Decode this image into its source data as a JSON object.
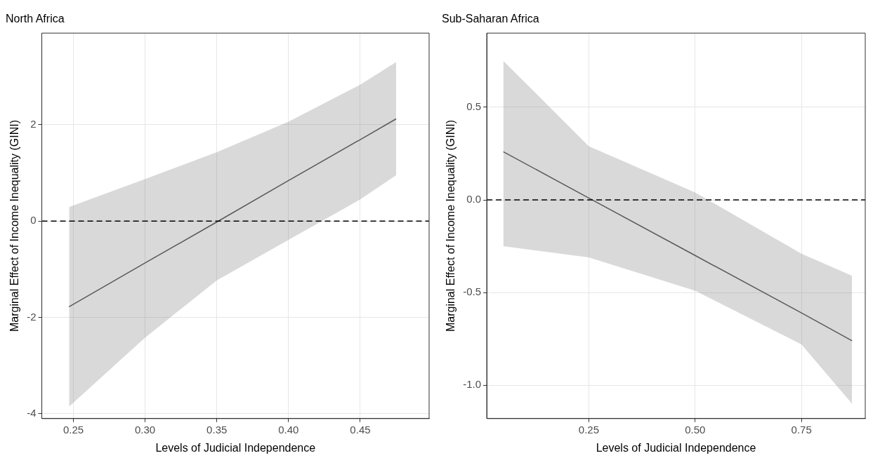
{
  "chart_data": [
    {
      "type": "line",
      "title": "North Africa",
      "xlabel": "Levels of Judicial Independence",
      "ylabel": "Marginal Effect of Income Inequality (GINI)",
      "x": [
        0.247,
        0.3,
        0.35,
        0.4,
        0.45,
        0.475
      ],
      "series": [
        {
          "color": "#595959",
          "values": [
            -1.78,
            -0.87,
            -0.02,
            0.84,
            1.69,
            2.12
          ],
          "lower": [
            -3.85,
            -2.42,
            -1.23,
            -0.39,
            0.45,
            0.95
          ],
          "upper": [
            0.29,
            0.87,
            1.43,
            2.06,
            2.83,
            3.3
          ]
        }
      ],
      "xlim": [
        0.228,
        0.498
      ],
      "xticks": [
        0.25,
        {
          "value": 0.3,
          "label": "0.30"
        },
        0.35,
        {
          "value": 0.4,
          "label": "0.40"
        },
        0.45
      ],
      "ylim": [
        -4.1,
        3.9
      ],
      "yticks": [
        -4,
        -2,
        0,
        2
      ],
      "ref_lines": [
        {
          "axis": "y",
          "value": 0,
          "color": "#000000",
          "line_style": "dashed"
        }
      ],
      "grid": true,
      "legend": false
    },
    {
      "type": "line",
      "title": "Sub-Saharan Africa",
      "xlabel": "Levels of Judicial Independence",
      "ylabel": "Marginal Effect of Income Inequality (GINI)",
      "x": [
        0.049,
        0.25,
        0.5,
        0.75,
        0.869
      ],
      "series": [
        {
          "color": "#595959",
          "values": [
            0.26,
            0.01,
            -0.3,
            -0.61,
            -0.76
          ],
          "lower": [
            -0.25,
            -0.31,
            -0.49,
            -0.78,
            -1.1
          ],
          "upper": [
            0.75,
            0.29,
            0.04,
            -0.29,
            -0.41
          ]
        }
      ],
      "xlim": [
        0.01,
        0.9
      ],
      "xticks": [
        0.25,
        {
          "value": 0.5,
          "label": "0.50"
        },
        0.75
      ],
      "ylim": [
        -1.18,
        0.9
      ],
      "yticks": [
        0.5,
        {
          "value": 0,
          "label": "0.0"
        },
        -0.5,
        {
          "value": -1,
          "label": "-1.0"
        }
      ],
      "ref_lines": [
        {
          "axis": "y",
          "value": 0,
          "color": "#000000",
          "line_style": "dashed"
        }
      ],
      "grid": true,
      "legend": false
    }
  ]
}
